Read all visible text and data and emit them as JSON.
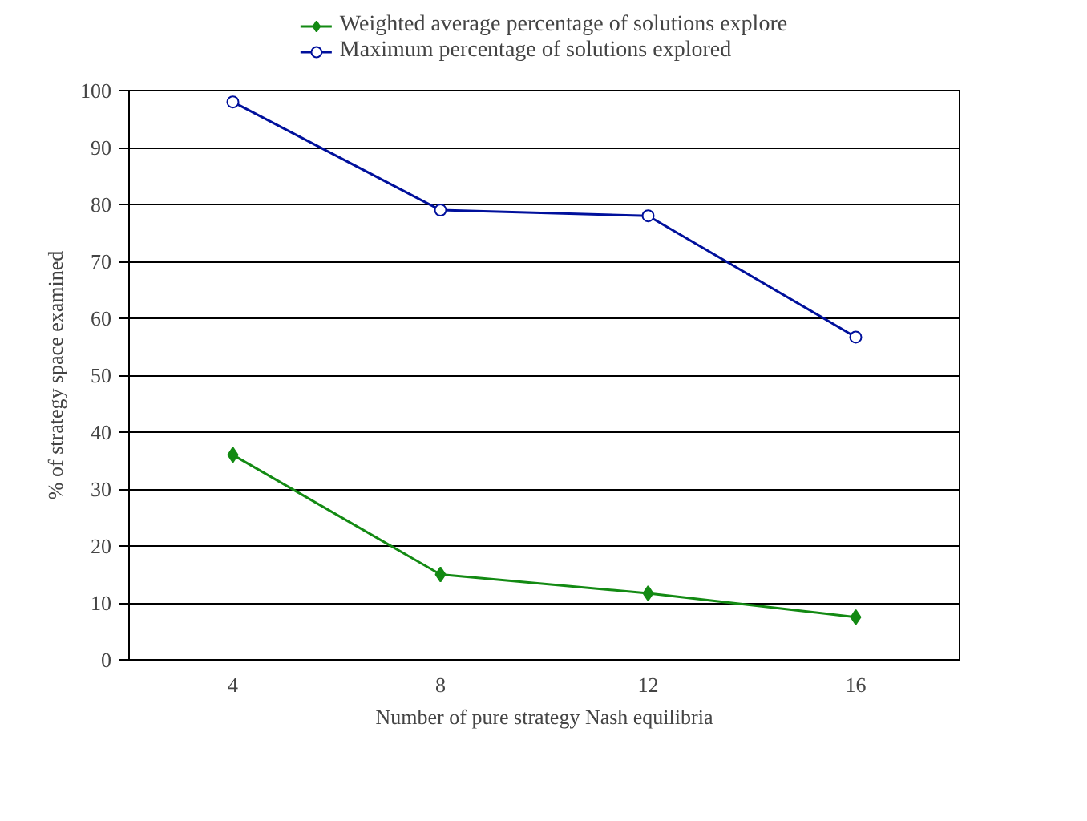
{
  "chart_data": {
    "type": "line",
    "xlabel": "Number of pure strategy Nash equilibria",
    "ylabel": "% of strategy space examined",
    "categories": [
      "4",
      "8",
      "12",
      "16"
    ],
    "series": [
      {
        "name": "Weighted average percentage of solutions explore",
        "color": "#138a13",
        "marker": "diamond",
        "values": [
          36,
          15,
          11.7,
          7.5
        ]
      },
      {
        "name": "Maximum percentage of solutions explored",
        "color": "#00109c",
        "marker": "circle",
        "values": [
          98,
          79,
          78,
          56.7
        ]
      }
    ],
    "ylim": [
      0,
      100
    ],
    "yticks": [
      0,
      10,
      20,
      30,
      40,
      50,
      60,
      70,
      80,
      90,
      100
    ],
    "grid": "y",
    "legend": "top"
  }
}
